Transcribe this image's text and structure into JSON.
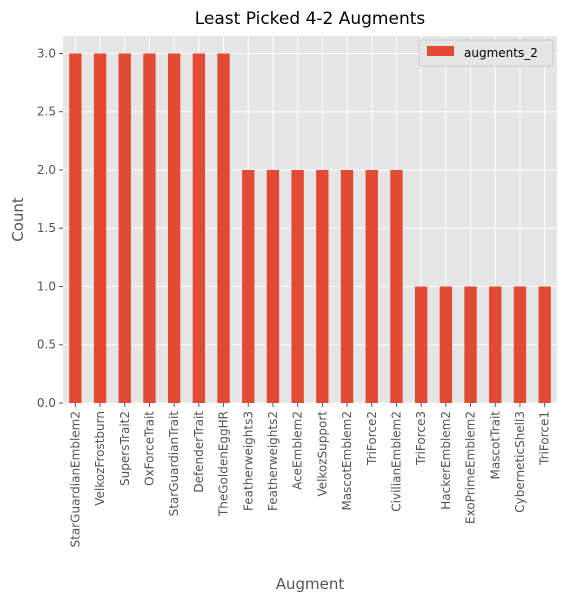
{
  "chart_data": {
    "type": "bar",
    "title": "Least Picked 4-2 Augments",
    "xlabel": "Augment",
    "ylabel": "Count",
    "categories": [
      "StarGuardianEmblem2",
      "VelkozFrostburn",
      "SupersTrait2",
      "OxForceTrait",
      "StarGuardianTrait",
      "DefenderTrait",
      "TheGoldenEggHR",
      "Featherweights3",
      "Featherweights2",
      "AceEmblem2",
      "VelkozSupport",
      "MascotEmblem2",
      "TriForce2",
      "CivilianEmblem2",
      "TriForce3",
      "HackerEmblem2",
      "ExoPrimeEmblem2",
      "MascotTrait",
      "CyberneticShell3",
      "TriForce1"
    ],
    "series": [
      {
        "name": "augments_2",
        "values": [
          3,
          3,
          3,
          3,
          3,
          3,
          3,
          2,
          2,
          2,
          2,
          2,
          2,
          2,
          1,
          1,
          1,
          1,
          1,
          1
        ]
      }
    ],
    "ylim": [
      0,
      3.15
    ],
    "yticks": [
      "0.0",
      "0.5",
      "1.0",
      "1.5",
      "2.0",
      "2.5",
      "3.0"
    ],
    "grid": true,
    "legend_position": "top-right",
    "colors": {
      "bar": "#e24a33",
      "plot_background": "#e5e5e5",
      "grid": "#ffffff"
    }
  }
}
